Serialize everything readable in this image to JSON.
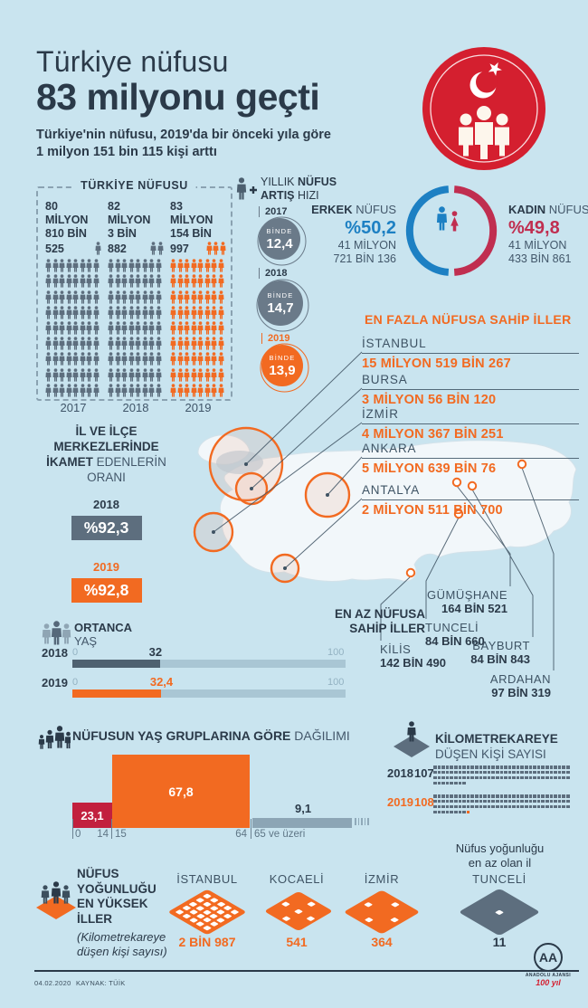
{
  "meta": {
    "date": "04.02.2020",
    "source": "KAYNAK: TÜİK"
  },
  "agency": {
    "monogram": "AA",
    "name": "ANADOLU AJANSI",
    "anniversary": "100 yıl"
  },
  "header": {
    "title_line1": "Türkiye nüfusu",
    "title_line2": "83 milyonu geçti",
    "subtitle_line1": "Türkiye'nin nüfusu, 2019'da bir önceki yıla göre",
    "subtitle_line2": "1 milyon 151 bin 115 kişi arttı"
  },
  "population_box": {
    "title": "TÜRKİYE NÜFUSU",
    "rows": 9,
    "cols": 8,
    "columns": [
      {
        "year": "2017",
        "line1": "80 MİLYON",
        "line2": "810 BİN",
        "line3": "525",
        "partial_figures": 1,
        "variant": "gray"
      },
      {
        "year": "2018",
        "line1": "82 MİLYON",
        "line2": "3 BİN",
        "line3": "882",
        "partial_figures": 2,
        "variant": "gray"
      },
      {
        "year": "2019",
        "line1": "83 MİLYON",
        "line2": "154 BİN",
        "line3": "997",
        "partial_figures": 3,
        "variant": "orange"
      }
    ]
  },
  "growth": {
    "label_l1_regular": "YILLIK",
    "label_l1_bold": "NÜFUS",
    "label_l2_bold": "ARTIŞ",
    "label_l2_regular": "HIZI",
    "items": [
      {
        "year": "2017",
        "unit": "BİNDE",
        "value": "12,4",
        "variant": "gray"
      },
      {
        "year": "2018",
        "unit": "BİNDE",
        "value": "14,7",
        "variant": "gray"
      },
      {
        "year": "2019",
        "unit": "BİNDE",
        "value": "13,9",
        "variant": "orange"
      }
    ]
  },
  "gender": {
    "male": {
      "label_bold": "ERKEK",
      "label_regular": " NÜFUS",
      "percent": "%50,2",
      "value_line1": "41 MİLYON",
      "value_line2": "721 BİN 136"
    },
    "female": {
      "label_bold": "KADIN",
      "label_regular": " NÜFUS",
      "percent": "%49,8",
      "value_line1": "41 MİLYON",
      "value_line2": "433 BİN 861"
    }
  },
  "top_cities": {
    "title": "EN FAZLA NÜFUSA SAHİP İLLER",
    "items": [
      {
        "name": "İSTANBUL",
        "value": "15 MİLYON 519 BİN 267"
      },
      {
        "name": "BURSA",
        "value": "3 MİLYON 56 BİN 120"
      },
      {
        "name": "İZMİR",
        "value": "4 MİLYON 367 BİN 251"
      },
      {
        "name": "ANKARA",
        "value": "5 MİLYON 639 BİN 76"
      },
      {
        "name": "ANTALYA",
        "value": "2 MİLYON 511 BİN 700"
      }
    ]
  },
  "urban_share": {
    "title_l1": "İL VE İLÇE",
    "title_l2": "MERKEZLERİNDE",
    "title_l3_bold": "İKAMET",
    "title_l3_regular": " EDENLERİN",
    "title_l4": "ORANI",
    "items": [
      {
        "year": "2018",
        "value": "%92,3",
        "variant": "gray"
      },
      {
        "year": "2019",
        "value": "%92,8",
        "variant": "orange"
      }
    ]
  },
  "least_cities": {
    "title_l1": "EN AZ NÜFUSA",
    "title_l2": "SAHİP İLLER",
    "items": [
      {
        "name": "KİLİS",
        "value": "142 BİN 490"
      },
      {
        "name": "TUNCELİ",
        "value": "84 BİN 660"
      },
      {
        "name": "GÜMÜŞHANE",
        "value": "164 BİN 521"
      },
      {
        "name": "BAYBURT",
        "value": "84 BİN 843"
      },
      {
        "name": "ARDAHAN",
        "value": "97 BİN 319"
      }
    ]
  },
  "median_age": {
    "title_bold": "ORTANCA",
    "title_regular": "YAŞ",
    "axis_min": "0",
    "axis_max": "100",
    "rows": [
      {
        "year": "2018",
        "value": "32",
        "pct": 32,
        "variant": "gray"
      },
      {
        "year": "2019",
        "value": "32,4",
        "pct": 32.4,
        "variant": "orange"
      }
    ]
  },
  "age_groups": {
    "title_bold": "NÜFUSUN YAŞ GRUPLARINA GÖRE",
    "title_regular": " DAĞILIMI",
    "bars": [
      {
        "label": "23,1",
        "pct": 23.1,
        "variant": "red"
      },
      {
        "label": "67,8",
        "pct": 67.8,
        "variant": "orange"
      },
      {
        "label": "9,1",
        "pct": 9.1,
        "variant": "muted"
      }
    ],
    "axis": {
      "zero": "0",
      "b1_end": "14",
      "b2_start": "15",
      "b2_end": "64",
      "b3_label": "65 ve üzeri"
    }
  },
  "density": {
    "title_bold": "KİLOMETREKAREYE",
    "title_regular": "DÜŞEN KİŞİ SAYISI",
    "per_row": 33,
    "rows": [
      {
        "year": "2018",
        "value": "107",
        "count": 107,
        "variant": "gray",
        "highlight_last": false
      },
      {
        "year": "2019",
        "value": "108",
        "count": 108,
        "variant": "orange",
        "highlight_last": true
      }
    ]
  },
  "density_cities": {
    "title_l1": "NÜFUS",
    "title_l2": "YOĞUNLUĞU",
    "title_l3": "EN YÜKSEK",
    "title_l4": "İLLER",
    "subtitle_l1": "(Kilometrekareye",
    "subtitle_l2": "düşen kişi sayısı)",
    "items": [
      {
        "name": "İSTANBUL",
        "value": "2 BİN 987",
        "pattern": "grid"
      },
      {
        "name": "KOCAELİ",
        "value": "541",
        "pattern": "five"
      },
      {
        "name": "İZMİR",
        "value": "364",
        "pattern": "four"
      }
    ],
    "min": {
      "note_l1": "Nüfus yoğunluğu",
      "note_l2": "en az olan il",
      "name": "TUNCELİ",
      "value": "11",
      "pattern": "one"
    }
  },
  "chart_data": [
    {
      "type": "bar",
      "title": "TÜRKİYE NÜFUSU",
      "categories": [
        "2017",
        "2018",
        "2019"
      ],
      "values": [
        80810525,
        82003882,
        83154997
      ]
    },
    {
      "type": "bar",
      "title": "YILLIK NÜFUS ARTIŞ HIZI (binde)",
      "categories": [
        "2017",
        "2018",
        "2019"
      ],
      "values": [
        12.4,
        14.7,
        13.9
      ]
    },
    {
      "type": "pie",
      "title": "ERKEK / KADIN NÜFUS",
      "labels": [
        "ERKEK NÜFUS",
        "KADIN NÜFUS"
      ],
      "values": [
        50.2,
        49.8
      ],
      "counts": [
        41721136,
        41433861
      ]
    },
    {
      "type": "bar",
      "title": "EN FAZLA NÜFUSA SAHİP İLLER",
      "categories": [
        "İSTANBUL",
        "BURSA",
        "İZMİR",
        "ANKARA",
        "ANTALYA"
      ],
      "values": [
        15519267,
        3056120,
        4367251,
        5639076,
        2511700
      ]
    },
    {
      "type": "bar",
      "title": "İL VE İLÇE MERKEZLERİNDE İKAMET EDENLERİN ORANI (%)",
      "categories": [
        "2018",
        "2019"
      ],
      "values": [
        92.3,
        92.8
      ]
    },
    {
      "type": "bar",
      "title": "EN AZ NÜFUSA SAHİP İLLER",
      "categories": [
        "KİLİS",
        "TUNCELİ",
        "GÜMÜŞHANE",
        "BAYBURT",
        "ARDAHAN"
      ],
      "values": [
        142490,
        84660,
        164521,
        84843,
        97319
      ]
    },
    {
      "type": "bar",
      "title": "ORTANCA YAŞ",
      "categories": [
        "2018",
        "2019"
      ],
      "values": [
        32,
        32.4
      ],
      "xlim": [
        0,
        100
      ]
    },
    {
      "type": "bar",
      "title": "NÜFUSUN YAŞ GRUPLARINA GÖRE DAĞILIMI (%)",
      "categories": [
        "0-14",
        "15-64",
        "65 ve üzeri"
      ],
      "values": [
        23.1,
        67.8,
        9.1
      ]
    },
    {
      "type": "bar",
      "title": "KİLOMETREKAREYE DÜŞEN KİŞİ SAYISI",
      "categories": [
        "2018",
        "2019"
      ],
      "values": [
        107,
        108
      ]
    },
    {
      "type": "bar",
      "title": "NÜFUS YOĞUNLUĞU EN YÜKSEK İLLER (kişi/km²)",
      "categories": [
        "İSTANBUL",
        "KOCAELİ",
        "İZMİR"
      ],
      "values": [
        2987,
        541,
        364
      ]
    },
    {
      "type": "bar",
      "title": "Nüfus yoğunluğu en az olan il (kişi/km²)",
      "categories": [
        "TUNCELİ"
      ],
      "values": [
        11
      ]
    }
  ]
}
